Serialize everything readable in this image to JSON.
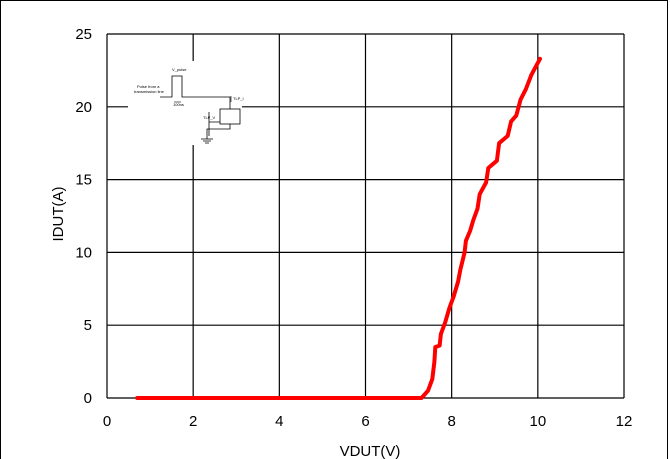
{
  "chart_data": {
    "type": "line",
    "xlabel": "VDUT(V)",
    "ylabel": "IDUT(A)",
    "xlim": [
      0,
      12
    ],
    "ylim": [
      0,
      25
    ],
    "xticks": [
      0,
      2,
      4,
      6,
      8,
      10,
      12
    ],
    "yticks": [
      0,
      5,
      10,
      15,
      20,
      25
    ],
    "grid": true,
    "series": [
      {
        "color": "#ff0000",
        "points": [
          [
            0.7,
            0.0
          ],
          [
            7.3,
            0.0
          ],
          [
            7.45,
            0.5
          ],
          [
            7.55,
            1.3
          ],
          [
            7.6,
            2.5
          ],
          [
            7.62,
            3.5
          ],
          [
            7.72,
            3.6
          ],
          [
            7.75,
            4.4
          ],
          [
            7.85,
            5.2
          ],
          [
            7.95,
            6.2
          ],
          [
            8.05,
            7.0
          ],
          [
            8.15,
            8.0
          ],
          [
            8.2,
            8.8
          ],
          [
            8.3,
            10.0
          ],
          [
            8.33,
            10.8
          ],
          [
            8.43,
            11.5
          ],
          [
            8.5,
            12.2
          ],
          [
            8.6,
            13.0
          ],
          [
            8.65,
            14.0
          ],
          [
            8.8,
            14.8
          ],
          [
            8.85,
            15.8
          ],
          [
            9.05,
            16.3
          ],
          [
            9.1,
            17.5
          ],
          [
            9.3,
            18.0
          ],
          [
            9.38,
            19.0
          ],
          [
            9.5,
            19.4
          ],
          [
            9.6,
            20.5
          ],
          [
            9.72,
            21.2
          ],
          [
            9.85,
            22.2
          ],
          [
            10.05,
            23.3
          ]
        ]
      }
    ]
  },
  "inset": {
    "v_pulse": "V_pulse",
    "pulse_from_line": "Pulse from a",
    "transmission_line": "transmission line",
    "duration": "100ns",
    "tlp_i": "TLP_I",
    "tlp_v": "TLP_V",
    "dut": "DUT"
  },
  "colors": {
    "series": "#ff0000",
    "grid": "#000000",
    "background": "#ffffff"
  }
}
